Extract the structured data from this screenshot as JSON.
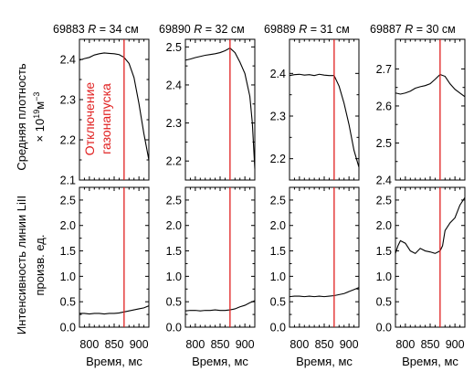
{
  "chart_data": {
    "type": "line",
    "marker_x": 870,
    "marker_color": "#e02020",
    "annotation": [
      "Отключение",
      "газонапуска"
    ],
    "xlabel": "Время, мс",
    "xlim": [
      780,
      920
    ],
    "xticks": [
      800,
      850,
      900
    ],
    "xtick_labels": [
      "800",
      "850",
      "900"
    ],
    "row_labels": [
      {
        "line1": "Средняя плотность",
        "line2": "× 10",
        "sup": "19",
        "line2b": "м",
        "sup2": "−3"
      },
      {
        "line1": "Интенсивность линии LiII",
        "line2": "произв. ед."
      }
    ],
    "columns": [
      {
        "title_shot": "69883",
        "title_r": "R",
        "title_rest": " = 34 см",
        "density": {
          "ylim": [
            2.1,
            2.45
          ],
          "yticks": [
            2.1,
            2.2,
            2.3,
            2.4
          ],
          "ytick_labels": [
            "2.1",
            "2.2",
            "2.3",
            "2.4"
          ],
          "x": [
            780,
            790,
            800,
            810,
            820,
            830,
            840,
            850,
            860,
            870,
            880,
            890,
            900,
            910,
            920
          ],
          "y": [
            2.398,
            2.402,
            2.405,
            2.411,
            2.414,
            2.416,
            2.415,
            2.414,
            2.412,
            2.405,
            2.39,
            2.355,
            2.29,
            2.215,
            2.15
          ]
        },
        "intensity": {
          "ylim": [
            0,
            2.75
          ],
          "yticks": [
            0,
            0.5,
            1.0,
            1.5,
            2.0,
            2.5
          ],
          "ytick_labels": [
            "0.0",
            "0.5",
            "1.0",
            "1.5",
            "2.0",
            "2.5"
          ],
          "x": [
            780,
            790,
            800,
            810,
            820,
            830,
            840,
            850,
            860,
            870,
            880,
            890,
            900,
            910,
            920
          ],
          "y": [
            0.27,
            0.27,
            0.26,
            0.27,
            0.27,
            0.26,
            0.27,
            0.27,
            0.28,
            0.3,
            0.32,
            0.34,
            0.36,
            0.38,
            0.42
          ]
        }
      },
      {
        "title_shot": "69890",
        "title_r": "R",
        "title_rest": " = 32 см",
        "density": {
          "ylim": [
            2.15,
            2.52
          ],
          "yticks": [
            2.2,
            2.3,
            2.4,
            2.5
          ],
          "ytick_labels": [
            "2.2",
            "2.3",
            "2.4",
            "2.5"
          ],
          "x": [
            780,
            790,
            800,
            810,
            820,
            830,
            840,
            850,
            860,
            870,
            880,
            890,
            900,
            910,
            915,
            920
          ],
          "y": [
            2.465,
            2.468,
            2.472,
            2.475,
            2.478,
            2.48,
            2.482,
            2.485,
            2.49,
            2.497,
            2.485,
            2.46,
            2.43,
            2.37,
            2.3,
            2.18
          ]
        },
        "intensity": {
          "ylim": [
            0,
            2.75
          ],
          "yticks": [
            0,
            0.5,
            1.0,
            1.5,
            2.0,
            2.5
          ],
          "ytick_labels": [
            "0.0",
            "0.5",
            "1.0",
            "1.5",
            "2.0",
            "2.5"
          ],
          "x": [
            780,
            790,
            800,
            810,
            820,
            830,
            840,
            850,
            860,
            870,
            880,
            890,
            900,
            910,
            920
          ],
          "y": [
            0.32,
            0.33,
            0.33,
            0.32,
            0.33,
            0.33,
            0.34,
            0.33,
            0.33,
            0.34,
            0.36,
            0.4,
            0.43,
            0.48,
            0.52
          ]
        }
      },
      {
        "title_shot": "69889",
        "title_r": "R",
        "title_rest": " = 31 см",
        "density": {
          "ylim": [
            2.15,
            2.48
          ],
          "yticks": [
            2.2,
            2.3,
            2.4
          ],
          "ytick_labels": [
            "2.2",
            "2.3",
            "2.4"
          ],
          "x": [
            780,
            790,
            800,
            810,
            820,
            830,
            840,
            850,
            860,
            870,
            880,
            890,
            900,
            910,
            920
          ],
          "y": [
            2.395,
            2.397,
            2.398,
            2.396,
            2.397,
            2.395,
            2.398,
            2.396,
            2.395,
            2.395,
            2.37,
            2.33,
            2.28,
            2.22,
            2.18
          ]
        },
        "intensity": {
          "ylim": [
            0,
            2.75
          ],
          "yticks": [
            0,
            0.5,
            1.0,
            1.5,
            2.0,
            2.5
          ],
          "ytick_labels": [
            "0.0",
            "0.5",
            "1.0",
            "1.5",
            "2.0",
            "2.5"
          ],
          "x": [
            780,
            790,
            800,
            810,
            820,
            830,
            840,
            850,
            860,
            870,
            880,
            890,
            900,
            910,
            920
          ],
          "y": [
            0.6,
            0.61,
            0.61,
            0.6,
            0.61,
            0.6,
            0.61,
            0.6,
            0.61,
            0.62,
            0.64,
            0.66,
            0.7,
            0.74,
            0.78
          ]
        }
      },
      {
        "title_shot": "69887",
        "title_r": "R",
        "title_rest": " = 30 см",
        "density": {
          "ylim": [
            2.4,
            2.78
          ],
          "yticks": [
            2.4,
            2.5,
            2.6,
            2.7
          ],
          "ytick_labels": [
            "2.4",
            "2.5",
            "2.6",
            "2.7"
          ],
          "x": [
            780,
            790,
            800,
            810,
            820,
            830,
            840,
            850,
            860,
            870,
            880,
            890,
            900,
            910,
            920
          ],
          "y": [
            2.635,
            2.632,
            2.635,
            2.64,
            2.648,
            2.652,
            2.655,
            2.66,
            2.672,
            2.685,
            2.68,
            2.66,
            2.645,
            2.635,
            2.625
          ]
        },
        "intensity": {
          "ylim": [
            0,
            2.75
          ],
          "yticks": [
            0,
            0.5,
            1.0,
            1.5,
            2.0,
            2.5
          ],
          "ytick_labels": [
            "0.0",
            "0.5",
            "1.0",
            "1.5",
            "2.0",
            "2.5"
          ],
          "x": [
            780,
            785,
            790,
            800,
            810,
            820,
            830,
            840,
            850,
            860,
            870,
            875,
            880,
            890,
            900,
            910,
            920
          ],
          "y": [
            1.45,
            1.6,
            1.7,
            1.65,
            1.5,
            1.45,
            1.55,
            1.5,
            1.48,
            1.45,
            1.5,
            1.6,
            1.9,
            2.05,
            2.15,
            2.4,
            2.55
          ]
        }
      }
    ]
  }
}
